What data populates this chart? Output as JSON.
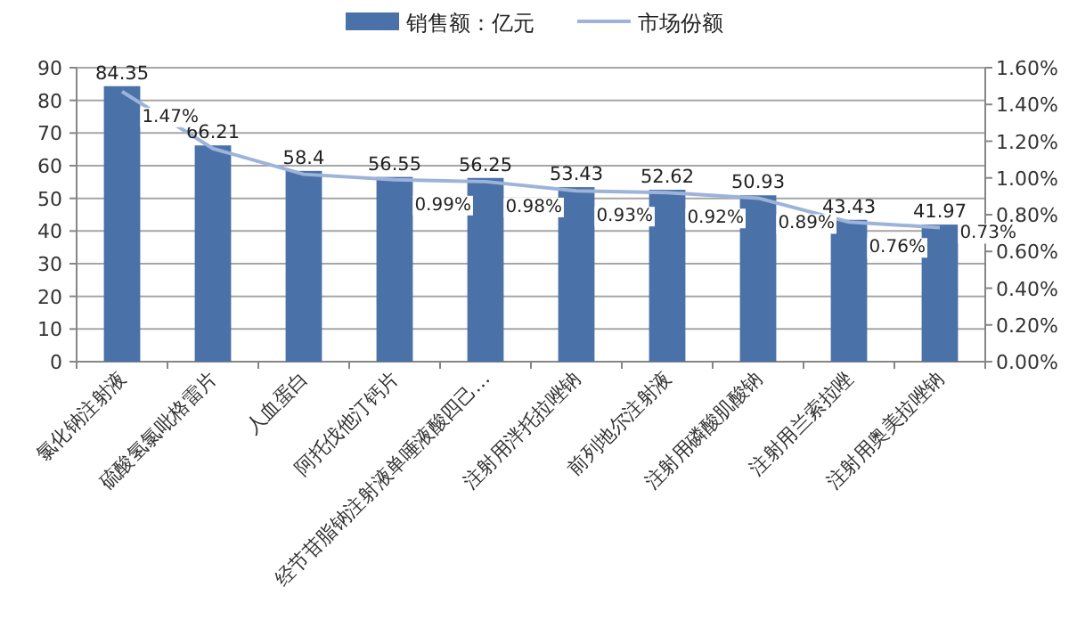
{
  "chart_data": {
    "type": "bar",
    "categories": [
      "氯化钠注射液",
      "硫酸氢氯吡格雷片",
      "人血蛋白",
      "阿托伐他汀钙片",
      "经节苷脂钠注射液单唾液酸四己…",
      "注射用泮托拉唑钠",
      "前列地尔注射液",
      "注射用磷酸肌酸钠",
      "注射用兰索拉唑",
      "注射用奥美拉唑钠"
    ],
    "series": [
      {
        "name": "销售额：亿元",
        "color": "#4a72a8",
        "values": [
          84.35,
          66.21,
          58.4,
          56.55,
          56.25,
          53.43,
          52.62,
          50.93,
          43.43,
          41.97
        ]
      },
      {
        "name": "市场份额",
        "type": "line",
        "axis": "y2",
        "color": "#9db3da",
        "values": [
          1.47,
          1.16,
          1.02,
          0.99,
          0.98,
          0.93,
          0.92,
          0.89,
          0.76,
          0.73
        ],
        "value_labels": [
          "1.47%",
          null,
          null,
          "0.99%",
          "0.98%",
          "0.93%",
          "0.92%",
          "0.89%",
          "0.76%",
          "0.73%"
        ]
      }
    ],
    "data_labels": true,
    "ylim": [
      0,
      90
    ],
    "yticks": [
      0,
      10,
      20,
      30,
      40,
      50,
      60,
      70,
      80,
      90
    ],
    "y2lim": [
      0,
      1.6
    ],
    "y2ticks": [
      {
        "value": 0,
        "label": "0.00%"
      },
      {
        "value": 0.2,
        "label": "0.20%"
      },
      {
        "value": 0.4,
        "label": "0.40%"
      },
      {
        "value": 0.6,
        "label": "0.60%"
      },
      {
        "value": 0.8,
        "label": "0.80%"
      },
      {
        "value": 1.0,
        "label": "1.00%"
      },
      {
        "value": 1.2,
        "label": "1.20%"
      },
      {
        "value": 1.4,
        "label": "1.40%"
      },
      {
        "value": 1.6,
        "label": "1.60%"
      }
    ],
    "grid": "y",
    "legend": "top",
    "marker": "none"
  }
}
